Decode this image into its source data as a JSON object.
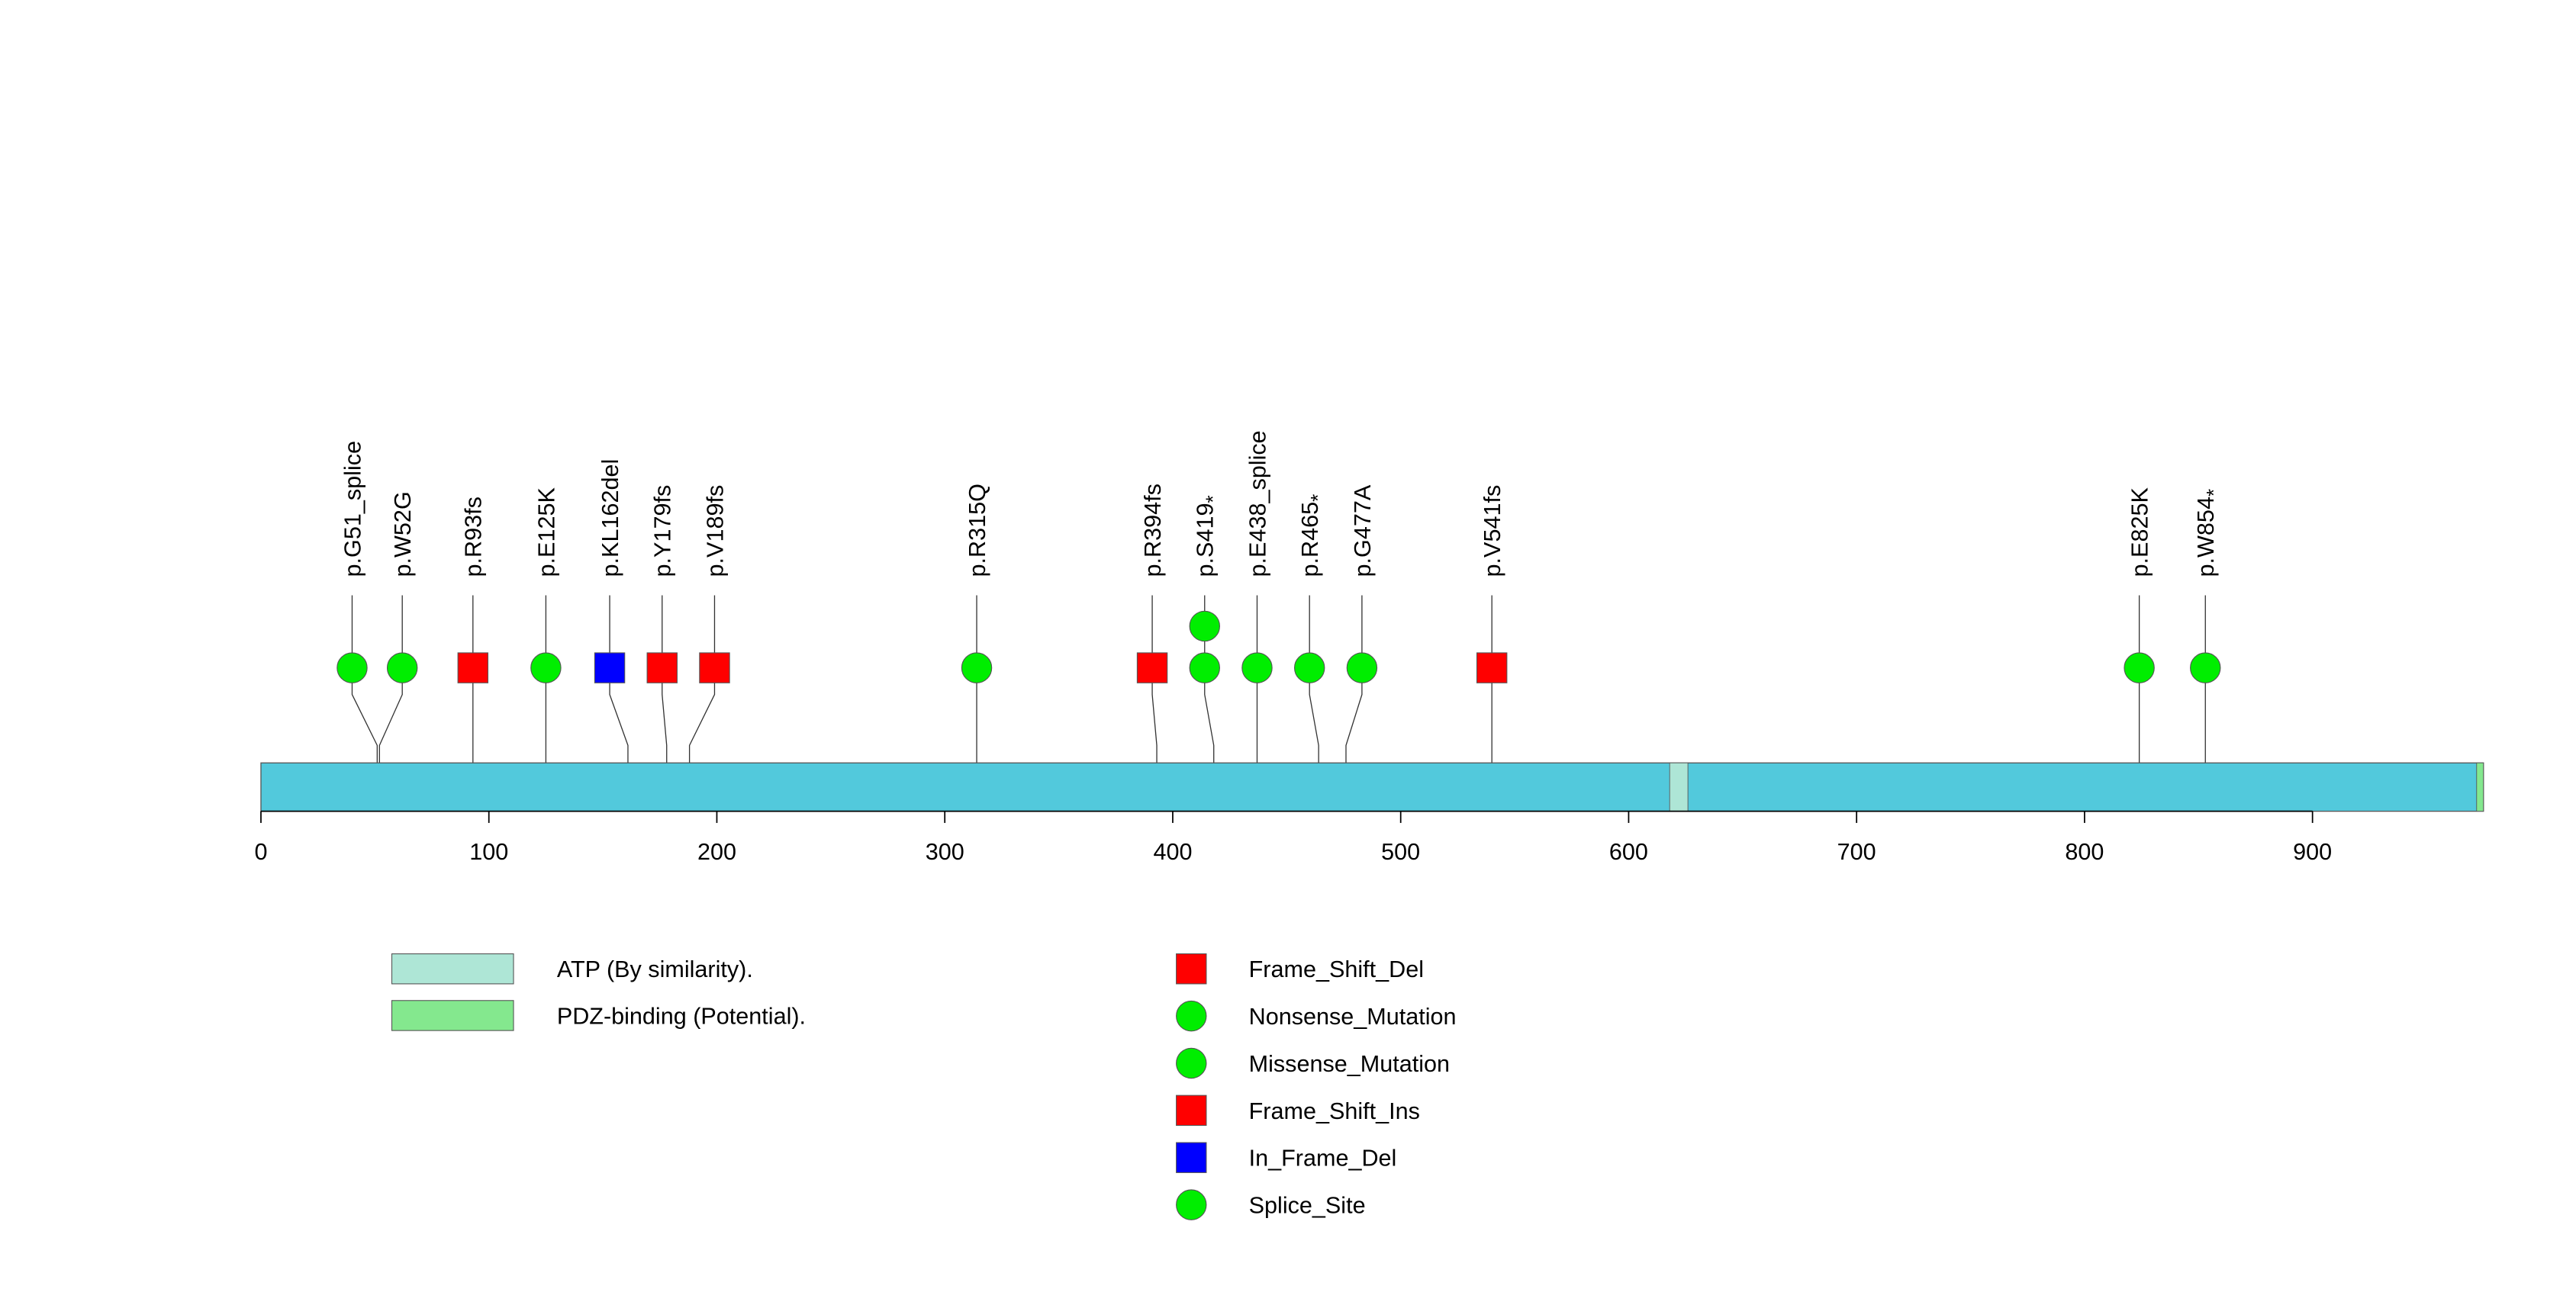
{
  "chart_data": {
    "type": "lollipop",
    "protein_length": 975,
    "axis": {
      "xlim": [
        0,
        975
      ],
      "ticks": [
        0,
        100,
        200,
        300,
        400,
        500,
        600,
        700,
        800,
        900
      ],
      "tick_labels": [
        "0",
        "100",
        "200",
        "300",
        "400",
        "500",
        "600",
        "700",
        "800",
        "900"
      ]
    },
    "domains": [
      {
        "name": "ATP (By similarity).",
        "start": 618,
        "end": 626,
        "color": "#aee6d6"
      },
      {
        "name": "PDZ-binding (Potential).",
        "start": 972,
        "end": 975,
        "color": "#84e88e"
      }
    ],
    "backbone_color": "#52c9dc",
    "mutations": [
      {
        "label": "p.G51_splice",
        "label_sub": "",
        "position": 51,
        "marker_x": 40,
        "count": 1,
        "type": "Splice_Site"
      },
      {
        "label": "p.W52G",
        "label_sub": "",
        "position": 52,
        "marker_x": 62,
        "count": 1,
        "type": "Missense_Mutation"
      },
      {
        "label": "p.R93fs",
        "label_sub": "",
        "position": 93,
        "marker_x": 93,
        "count": 1,
        "type": "Frame_Shift_Del"
      },
      {
        "label": "p.E125K",
        "label_sub": "",
        "position": 125,
        "marker_x": 125,
        "count": 1,
        "type": "Missense_Mutation"
      },
      {
        "label": "p.KL162del",
        "label_sub": "",
        "position": 161,
        "marker_x": 153,
        "count": 1,
        "type": "In_Frame_Del"
      },
      {
        "label": "p.Y179fs",
        "label_sub": "",
        "position": 178,
        "marker_x": 176,
        "count": 1,
        "type": "Frame_Shift_Del"
      },
      {
        "label": "p.V189fs",
        "label_sub": "",
        "position": 188,
        "marker_x": 199,
        "count": 1,
        "type": "Frame_Shift_Del"
      },
      {
        "label": "p.R315Q",
        "label_sub": "",
        "position": 314,
        "marker_x": 314,
        "count": 1,
        "type": "Missense_Mutation"
      },
      {
        "label": "p.R394fs",
        "label_sub": "",
        "position": 393,
        "marker_x": 391,
        "count": 1,
        "type": "Frame_Shift_Ins"
      },
      {
        "label": "p.S419",
        "label_sub": "*",
        "position": 418,
        "marker_x": 414,
        "count": 2,
        "type": "Nonsense_Mutation"
      },
      {
        "label": "p.E438_splice",
        "label_sub": "",
        "position": 437,
        "marker_x": 437,
        "count": 1,
        "type": "Splice_Site"
      },
      {
        "label": "p.R465",
        "label_sub": "*",
        "position": 464,
        "marker_x": 460,
        "count": 1,
        "type": "Nonsense_Mutation"
      },
      {
        "label": "p.G477A",
        "label_sub": "",
        "position": 476,
        "marker_x": 483,
        "count": 1,
        "type": "Missense_Mutation"
      },
      {
        "label": "p.V541fs",
        "label_sub": "",
        "position": 540,
        "marker_x": 540,
        "count": 1,
        "type": "Frame_Shift_Del"
      },
      {
        "label": "p.E825K",
        "label_sub": "",
        "position": 824,
        "marker_x": 824,
        "count": 1,
        "type": "Missense_Mutation"
      },
      {
        "label": "p.W854",
        "label_sub": "*",
        "position": 853,
        "marker_x": 853,
        "count": 1,
        "type": "Nonsense_Mutation"
      }
    ],
    "mutation_types": [
      {
        "name": "Frame_Shift_Del",
        "shape": "square",
        "color": "#ff0000"
      },
      {
        "name": "Nonsense_Mutation",
        "shape": "circle",
        "color": "#00ee00"
      },
      {
        "name": "Missense_Mutation",
        "shape": "circle",
        "color": "#00ee00"
      },
      {
        "name": "Frame_Shift_Ins",
        "shape": "square",
        "color": "#ff0000"
      },
      {
        "name": "In_Frame_Del",
        "shape": "square",
        "color": "#0000ff"
      },
      {
        "name": "Splice_Site",
        "shape": "circle",
        "color": "#00ee00"
      }
    ]
  }
}
